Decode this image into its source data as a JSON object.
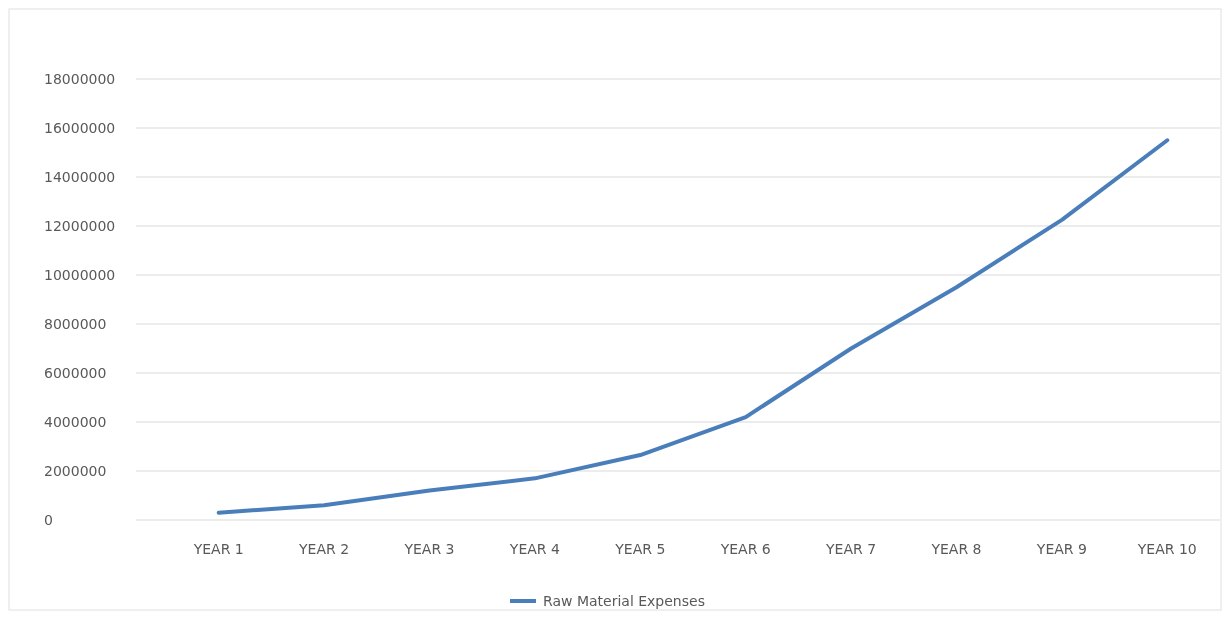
{
  "chart_data": {
    "type": "line",
    "categories": [
      "YEAR 1",
      "YEAR 2",
      "YEAR 3",
      "YEAR 4",
      "YEAR 5",
      "YEAR 6",
      "YEAR 7",
      "YEAR 8",
      "YEAR 9",
      "YEAR 10"
    ],
    "series": [
      {
        "name": "Raw Material Expenses",
        "color": "#4a7ebb",
        "values": [
          300000,
          600000,
          1200000,
          1700000,
          2650000,
          4200000,
          7000000,
          9500000,
          12250000,
          15500000
        ]
      }
    ],
    "ylim": [
      0,
      18000000
    ],
    "yticks": [
      0,
      2000000,
      4000000,
      6000000,
      8000000,
      10000000,
      12000000,
      14000000,
      16000000,
      18000000
    ],
    "grid": "y",
    "legend": "bottom",
    "marker": "none",
    "line_style": "solid"
  }
}
